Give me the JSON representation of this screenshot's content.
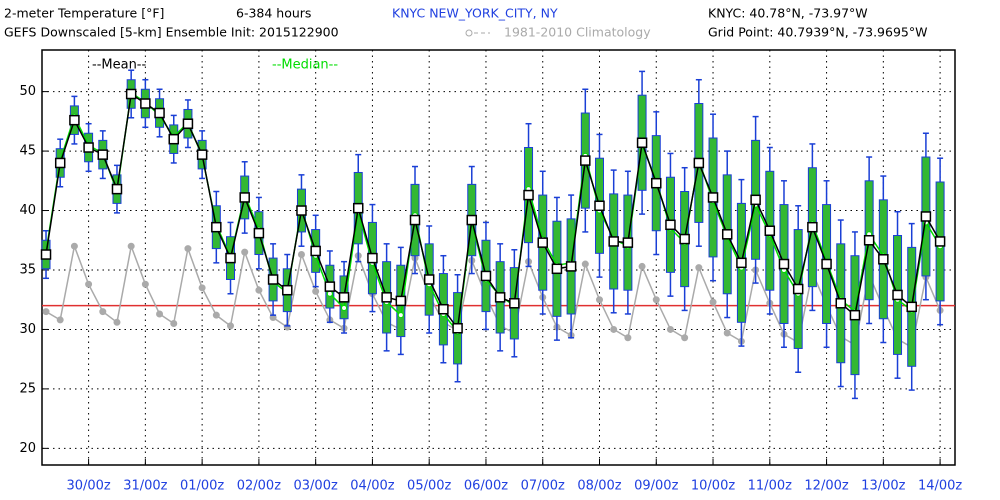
{
  "chart_data": {
    "type": "ensemble-box",
    "title": "2-meter Temperature [°F]",
    "forecast_range": "6-384 hours",
    "subtitle": "GEFS Downscaled [5-km] Ensemble Init: 2015122900",
    "station": "KNYC NEW_YORK_CITY, NY",
    "station_location": "KNYC: 40.78°N, -73.97°W",
    "grid_point": "Grid Point: 40.7939°N, -73.9695°W",
    "x": [
      6,
      12,
      18,
      24,
      30,
      36,
      42,
      48,
      54,
      60,
      66,
      72,
      78,
      84,
      90,
      96,
      102,
      108,
      114,
      120,
      126,
      132,
      138,
      144,
      150,
      156,
      162,
      168,
      174,
      180,
      186,
      192,
      198,
      204,
      210,
      216,
      222,
      228,
      234,
      240,
      246,
      252,
      258,
      264,
      270,
      276,
      282,
      288,
      294,
      300,
      306,
      312,
      318,
      324,
      330,
      336,
      342,
      348,
      354,
      360,
      366,
      372,
      378,
      384
    ],
    "xlim": [
      4.3,
      390.3
    ],
    "xticks": [
      {
        "value": 24,
        "label": "30/00z"
      },
      {
        "value": 48,
        "label": "31/00z"
      },
      {
        "value": 72,
        "label": "01/00z"
      },
      {
        "value": 96,
        "label": "02/00z"
      },
      {
        "value": 120,
        "label": "03/00z"
      },
      {
        "value": 144,
        "label": "04/00z"
      },
      {
        "value": 168,
        "label": "05/00z"
      },
      {
        "value": 192,
        "label": "06/00z"
      },
      {
        "value": 216,
        "label": "07/00z"
      },
      {
        "value": 240,
        "label": "08/00z"
      },
      {
        "value": 264,
        "label": "09/00z"
      },
      {
        "value": 288,
        "label": "10/00z"
      },
      {
        "value": 312,
        "label": "11/00z"
      },
      {
        "value": 336,
        "label": "12/00z"
      },
      {
        "value": 360,
        "label": "13/00z"
      },
      {
        "value": 384,
        "label": "14/00z"
      }
    ],
    "ylim": [
      18.6,
      53.5
    ],
    "yticks": [
      20,
      25,
      30,
      35,
      40,
      45,
      50
    ],
    "grid": true,
    "freezing": 32,
    "freezing_color": "#e03030",
    "series": [
      {
        "name": "--Mean--",
        "color": "#000000",
        "values": [
          36.3,
          44.0,
          47.6,
          45.3,
          44.7,
          41.8,
          49.8,
          49.0,
          48.2,
          46.0,
          47.3,
          44.7,
          38.6,
          36.0,
          41.1,
          38.1,
          34.2,
          33.3,
          40.0,
          36.6,
          33.6,
          32.7,
          40.2,
          36.0,
          32.7,
          32.4,
          39.2,
          34.2,
          31.7,
          30.1,
          39.2,
          34.5,
          32.7,
          32.2,
          41.3,
          37.3,
          35.1,
          35.3,
          44.2,
          40.4,
          37.4,
          37.3,
          45.7,
          42.3,
          38.8,
          37.6,
          44.0,
          41.1,
          38.0,
          35.6,
          40.9,
          38.3,
          35.5,
          33.4,
          38.6,
          35.5,
          32.2,
          31.2,
          37.5,
          35.9,
          32.9,
          31.9,
          39.5,
          37.4
        ]
      },
      {
        "name": "--Median--",
        "color": "#00dd00",
        "values": [
          36.5,
          44.2,
          47.9,
          45.5,
          44.8,
          41.6,
          49.9,
          49.1,
          48.0,
          46.2,
          47.4,
          44.6,
          38.8,
          36.1,
          41.3,
          38.4,
          34.0,
          33.1,
          40.2,
          36.2,
          33.0,
          31.8,
          39.9,
          35.6,
          32.3,
          31.2,
          39.6,
          33.8,
          31.3,
          29.8,
          39.0,
          34.2,
          32.8,
          32.0,
          41.8,
          37.6,
          35.4,
          35.6,
          44.6,
          40.0,
          37.6,
          37.0,
          45.5,
          42.5,
          38.5,
          37.3,
          44.2,
          40.8,
          37.8,
          35.2,
          40.5,
          38.0,
          35.0,
          33.0,
          38.9,
          35.7,
          32.5,
          31.5,
          38.0,
          36.2,
          32.5,
          31.6,
          39.0,
          37.0
        ]
      },
      {
        "name": "1981-2010 Climatology",
        "color": "#aaaaaa",
        "values": [
          31.5,
          30.8,
          37.0,
          33.8,
          31.5,
          30.6,
          37.0,
          33.8,
          31.3,
          30.5,
          36.8,
          33.5,
          31.2,
          30.3,
          36.5,
          33.3,
          31.0,
          30.2,
          36.3,
          33.2,
          30.8,
          30.1,
          36.2,
          33.0,
          30.6,
          30.0,
          36.0,
          32.9,
          30.6,
          29.9,
          35.8,
          32.8,
          30.3,
          29.7,
          35.7,
          32.7,
          30.2,
          29.5,
          35.5,
          32.5,
          30.0,
          29.3,
          35.3,
          32.5,
          30.0,
          29.3,
          35.2,
          32.3,
          29.7,
          29.0,
          35.0,
          32.2,
          29.6,
          28.9,
          34.8,
          32.0,
          29.4,
          28.7,
          34.6,
          31.8,
          29.2,
          28.5,
          34.4,
          31.6
        ]
      }
    ],
    "ensemble": {
      "box_color": "#33b833",
      "edge_color": "#1a3fd6",
      "q1": [
        35.1,
        42.8,
        46.4,
        44.1,
        43.5,
        40.6,
        48.6,
        47.8,
        47.0,
        44.8,
        46.1,
        43.5,
        36.8,
        34.2,
        39.3,
        36.3,
        32.4,
        31.5,
        38.2,
        34.8,
        31.8,
        30.9,
        37.2,
        33.0,
        29.7,
        29.4,
        36.2,
        31.2,
        28.7,
        27.1,
        36.2,
        31.5,
        29.7,
        29.2,
        37.3,
        33.3,
        31.1,
        31.3,
        40.2,
        36.4,
        33.4,
        33.3,
        41.7,
        38.3,
        34.8,
        33.6,
        39.0,
        36.1,
        33.0,
        30.6,
        35.9,
        33.3,
        30.5,
        28.4,
        33.6,
        30.5,
        27.2,
        26.2,
        32.5,
        30.9,
        27.9,
        26.9,
        34.5,
        32.4
      ],
      "q3": [
        37.5,
        45.2,
        48.8,
        46.5,
        45.9,
        43.0,
        51.0,
        50.2,
        49.4,
        47.2,
        48.5,
        45.9,
        40.4,
        37.8,
        42.9,
        39.9,
        36.0,
        35.1,
        41.8,
        38.4,
        35.4,
        34.5,
        43.2,
        39.0,
        35.7,
        35.4,
        42.2,
        37.2,
        34.7,
        33.1,
        42.2,
        37.5,
        35.7,
        35.2,
        45.3,
        41.3,
        39.1,
        39.3,
        48.2,
        44.4,
        41.4,
        41.3,
        49.7,
        46.3,
        42.8,
        41.6,
        49.0,
        46.1,
        43.0,
        40.6,
        45.9,
        43.3,
        40.5,
        38.4,
        43.6,
        40.5,
        37.2,
        36.2,
        42.5,
        40.9,
        37.9,
        36.9,
        44.5,
        42.4
      ],
      "min": [
        34.3,
        42.0,
        45.6,
        43.3,
        42.7,
        39.8,
        47.8,
        47.0,
        46.2,
        44.0,
        45.3,
        42.7,
        35.6,
        33.0,
        38.1,
        35.1,
        31.2,
        30.3,
        37.0,
        33.6,
        30.6,
        29.7,
        35.7,
        31.5,
        28.2,
        27.9,
        34.7,
        29.7,
        27.2,
        25.6,
        34.7,
        30.0,
        28.2,
        27.7,
        35.3,
        31.3,
        29.1,
        29.3,
        38.2,
        34.4,
        31.4,
        31.3,
        39.7,
        36.3,
        32.8,
        31.6,
        37.0,
        34.1,
        31.0,
        28.6,
        33.9,
        31.3,
        28.5,
        26.4,
        31.6,
        28.5,
        25.2,
        24.2,
        30.5,
        28.9,
        25.9,
        24.9,
        32.5,
        30.4
      ],
      "max": [
        38.3,
        46.0,
        49.6,
        47.3,
        46.7,
        43.8,
        51.8,
        51.0,
        50.2,
        48.0,
        49.3,
        46.7,
        41.6,
        39.0,
        44.1,
        41.1,
        37.2,
        36.3,
        43.0,
        39.6,
        36.6,
        35.7,
        44.7,
        40.5,
        37.2,
        36.9,
        43.7,
        38.7,
        36.2,
        34.6,
        43.7,
        39.0,
        37.2,
        36.7,
        47.3,
        43.3,
        41.1,
        41.3,
        50.2,
        46.4,
        43.4,
        43.3,
        51.7,
        48.3,
        44.8,
        43.6,
        51.0,
        48.1,
        45.0,
        42.6,
        47.9,
        45.3,
        42.5,
        40.4,
        45.6,
        42.5,
        39.2,
        38.2,
        44.5,
        42.9,
        39.9,
        38.9,
        46.5,
        44.4
      ]
    }
  }
}
